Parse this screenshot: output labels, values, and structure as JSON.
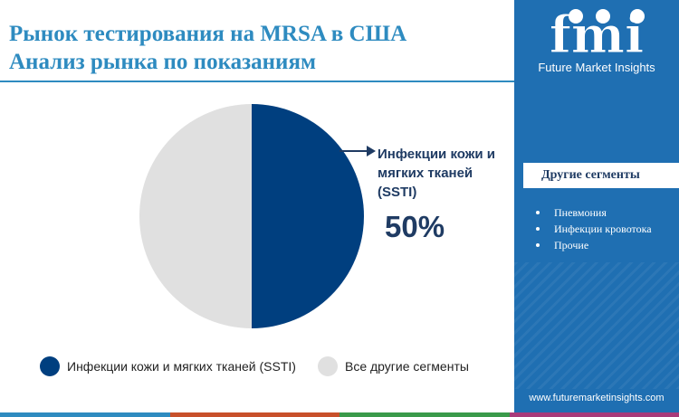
{
  "header": {
    "title_line1": "Рынок тестирования на MRSA в США",
    "title_line2": "Анализ рынка по показаниям"
  },
  "brand": {
    "logo_text": "fmi",
    "tagline": "Future Market Insights",
    "url": "www.futuremarketinsights.com"
  },
  "sidebar": {
    "heading": "Другие сегменты",
    "items": [
      "Пневмония",
      "Инфекции кровотока",
      "Прочие"
    ]
  },
  "callout": {
    "label": "Инфекции кожи и мягких тканей (SSTI)",
    "value": "50%"
  },
  "colors": {
    "accent": "#2e8bc0",
    "sidebar": "#1f6fb2",
    "primary_series": "#003f7f",
    "other_series": "#e0e0e0",
    "bottom_bar": [
      "#2e8bc0",
      "#c8502a",
      "#3a9a4a",
      "#a83a7a"
    ]
  },
  "chart_data": {
    "type": "pie",
    "title": "",
    "slices": [
      {
        "name": "Инфекции кожи и мягких тканей (SSTI)",
        "value": 50,
        "color": "#003f7f"
      },
      {
        "name": "Все другие сегменты",
        "value": 50,
        "color": "#e0e0e0"
      }
    ],
    "legend": {
      "placement": "bottom",
      "orientation": "horizontal"
    }
  }
}
